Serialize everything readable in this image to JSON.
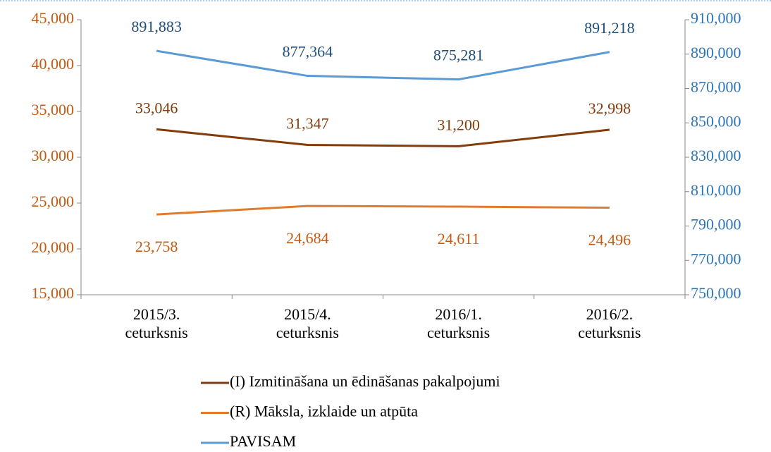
{
  "chart_data": {
    "type": "line",
    "categories": [
      "2015/3. ceturksnis",
      "2015/4. ceturksnis",
      "2016/1. ceturksnis",
      "2016/2. ceturksnis"
    ],
    "series": [
      {
        "name": "(I) Izmitināšana un ēdināšanas pakalpojumi",
        "color": "#843c0c",
        "values": [
          33046,
          31347,
          31200,
          32998
        ],
        "value_labels": [
          "33,046",
          "31,347",
          "31,200",
          "32,998"
        ]
      },
      {
        "name": "(R) Māksla, izklaide un atpūta",
        "color": "#e07b2e",
        "values": [
          23758,
          24684,
          24611,
          24496
        ],
        "value_labels": [
          "23,758",
          "24,684",
          "24,611",
          "24,496"
        ]
      },
      {
        "name": "PAVISAM",
        "color": "#5b9bd5",
        "axis": "y2",
        "values": [
          891883,
          877364,
          875281,
          891218
        ],
        "value_labels": [
          "891,883",
          "877,364",
          "875,281",
          "891,218"
        ]
      }
    ],
    "ylim": [
      15000,
      45000
    ],
    "yticks": [
      {
        "value": 15000,
        "label": "15,000"
      },
      {
        "value": 20000,
        "label": "20,000"
      },
      {
        "value": 25000,
        "label": "25,000"
      },
      {
        "value": 30000,
        "label": "30,000"
      },
      {
        "value": 35000,
        "label": "35,000"
      },
      {
        "value": 40000,
        "label": "40,000"
      },
      {
        "value": 45000,
        "label": "45,000"
      }
    ],
    "y2lim": [
      750000,
      910000
    ],
    "y2ticks": [
      {
        "value": 750000,
        "label": "750,000"
      },
      {
        "value": 770000,
        "label": "770,000"
      },
      {
        "value": 790000,
        "label": "790,000"
      },
      {
        "value": 810000,
        "label": "810,000"
      },
      {
        "value": 830000,
        "label": "830,000"
      },
      {
        "value": 850000,
        "label": "850,000"
      },
      {
        "value": 870000,
        "label": "870,000"
      },
      {
        "value": 890000,
        "label": "890,000"
      },
      {
        "value": 910000,
        "label": "910,000"
      }
    ],
    "legend": "bottom"
  }
}
